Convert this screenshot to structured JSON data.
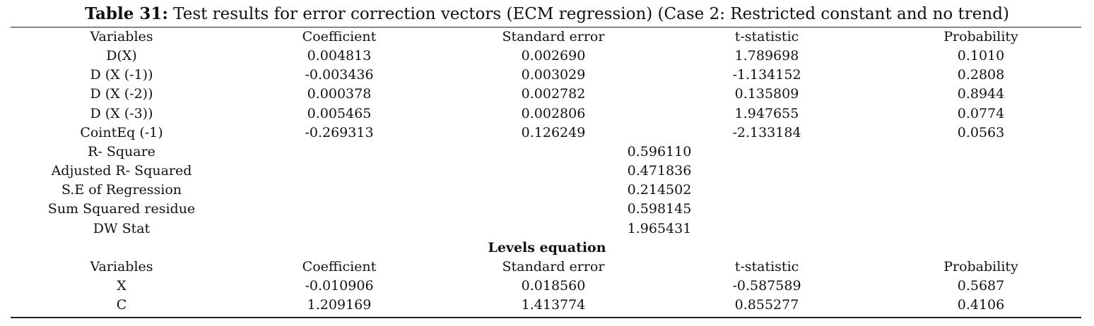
{
  "table": {
    "caption_label": "Table 31:",
    "caption_text": " Test results for error correction vectors (ECM regression) (Case 2: Restricted constant and no trend)",
    "header": [
      "Variables",
      "Coefficient",
      "Standard error",
      "t-statistic",
      "Probability"
    ],
    "rows": [
      [
        "D(X)",
        "0.004813",
        "0.002690",
        "1.789698",
        "0.1010"
      ],
      [
        "D (X (-1))",
        "-0.003436",
        "0.003029",
        "-1.134152",
        "0.2808"
      ],
      [
        "D (X (-2))",
        "0.000378",
        "0.002782",
        "0.135809",
        "0.8944"
      ],
      [
        "D (X (-3))",
        "0.005465",
        "0.002806",
        "1.947655",
        "0.0774"
      ],
      [
        "CointEq (-1)",
        "-0.269313",
        "0.126249",
        "-2.133184",
        "0.0563"
      ]
    ],
    "stats": [
      [
        "R- Square",
        "0.596110"
      ],
      [
        "Adjusted R- Squared",
        "0.471836"
      ],
      [
        "S.E of Regression",
        "0.214502"
      ],
      [
        "Sum Squared residue",
        "0.598145"
      ],
      [
        "DW Stat",
        "1.965431"
      ]
    ],
    "levels_title": "Levels equation",
    "levels_header": [
      "Variables",
      "Coefficient",
      "Standard error",
      "t-statistic",
      "Probability"
    ],
    "levels_rows": [
      [
        "X",
        "-0.010906",
        "0.018560",
        "-0.587589",
        "0.5687"
      ],
      [
        "C",
        "1.209169",
        "1.413774",
        "0.855277",
        "0.4106"
      ]
    ]
  }
}
